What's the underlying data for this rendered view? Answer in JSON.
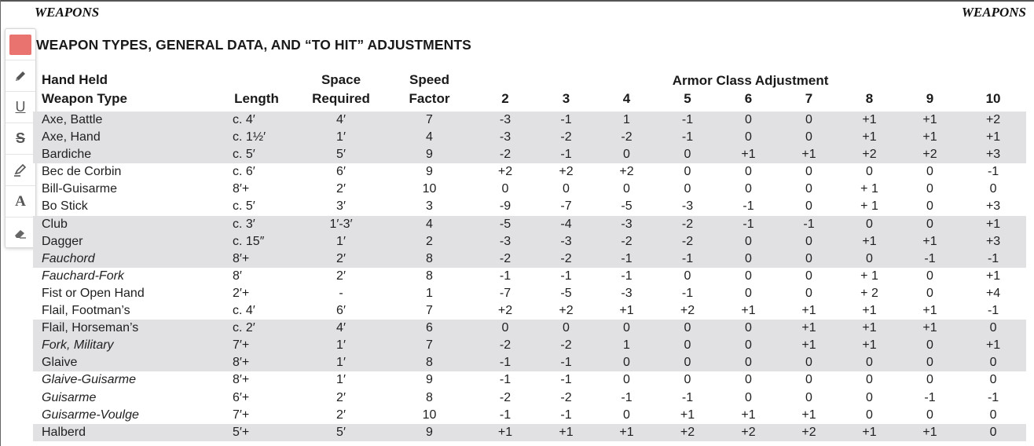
{
  "running_header": {
    "left": "WEAPONS",
    "right": "WEAPONS"
  },
  "section_title": "WEAPON TYPES, GENERAL DATA, AND “TO HIT” ADJUSTMENTS",
  "toolbar": {
    "highlight_color": "#e8736f",
    "tools": [
      "color-swatch",
      "pen-icon",
      "underline-icon",
      "strikethrough-icon",
      "highlighter-icon",
      "text-icon",
      "eraser-icon"
    ],
    "underline_glyph": "U",
    "strike_glyph": "S",
    "text_glyph": "A"
  },
  "table": {
    "headers": {
      "weapon_line1": "Hand Held",
      "weapon_line2": "Weapon Type",
      "length": "Length",
      "space_line1": "Space",
      "space_line2": "Required",
      "speed_line1": "Speed",
      "speed_line2": "Factor",
      "ac_group": "Armor Class Adjustment",
      "ac": [
        "2",
        "3",
        "4",
        "5",
        "6",
        "7",
        "8",
        "9",
        "10"
      ]
    },
    "rows": [
      {
        "name": "Axe, Battle",
        "italic": false,
        "length": "c. 4′",
        "space": "4′",
        "speed": "7",
        "ac": [
          "-3",
          "-1",
          "1",
          "-1",
          "0",
          "0",
          "+1",
          "+1",
          "+2"
        ]
      },
      {
        "name": "Axe, Hand",
        "italic": false,
        "length": "c. 1½′",
        "space": "1′",
        "speed": "4",
        "ac": [
          "-3",
          "-2",
          "-2",
          "-1",
          "0",
          "0",
          "+1",
          "+1",
          "+1"
        ]
      },
      {
        "name": "Bardiche",
        "italic": false,
        "length": "c. 5′",
        "space": "5′",
        "speed": "9",
        "ac": [
          "-2",
          "-1",
          "0",
          "0",
          "+1",
          "+1",
          "+2",
          "+2",
          "+3"
        ]
      },
      {
        "name": "Bec de Corbin",
        "italic": false,
        "length": "c. 6′",
        "space": "6′",
        "speed": "9",
        "ac": [
          "+2",
          "+2",
          "+2",
          "0",
          "0",
          "0",
          "0",
          "0",
          "-1"
        ]
      },
      {
        "name": "Bill-Guisarme",
        "italic": false,
        "length": "8′+",
        "space": "2′",
        "speed": "10",
        "ac": [
          "0",
          "0",
          "0",
          "0",
          "0",
          "0",
          "+ 1",
          "0",
          "0"
        ]
      },
      {
        "name": "Bo Stick",
        "italic": false,
        "length": "c. 5′",
        "space": "3′",
        "speed": "3",
        "ac": [
          "-9",
          "-7",
          "-5",
          "-3",
          "-1",
          "0",
          "+ 1",
          "0",
          "+3"
        ]
      },
      {
        "name": "Club",
        "italic": false,
        "length": "c. 3′",
        "space": "1′-3′",
        "speed": "4",
        "ac": [
          "-5",
          "-4",
          "-3",
          "-2",
          "-1",
          "-1",
          "0",
          "0",
          "+1"
        ]
      },
      {
        "name": "Dagger",
        "italic": false,
        "length": "c. 15″",
        "space": "1′",
        "speed": "2",
        "ac": [
          "-3",
          "-3",
          "-2",
          "-2",
          "0",
          "0",
          "+1",
          "+1",
          "+3"
        ]
      },
      {
        "name": "Fauchord",
        "italic": true,
        "length": "8′+",
        "space": "2′",
        "speed": "8",
        "ac": [
          "-2",
          "-2",
          "-1",
          "-1",
          "0",
          "0",
          "0",
          "-1",
          "-1"
        ]
      },
      {
        "name": "Fauchard-Fork",
        "italic": true,
        "length": "8′",
        "space": "2′",
        "speed": "8",
        "ac": [
          "-1",
          "-1",
          "-1",
          "0",
          "0",
          "0",
          "+ 1",
          "0",
          "+1"
        ]
      },
      {
        "name": "Fist or Open Hand",
        "italic": false,
        "length": "2′+",
        "space": "-",
        "speed": "1",
        "ac": [
          "-7",
          "-5",
          "-3",
          "-1",
          "0",
          "0",
          "+ 2",
          "0",
          "+4"
        ]
      },
      {
        "name": "Flail, Footman’s",
        "italic": false,
        "length": "c. 4′",
        "space": "6′",
        "speed": "7",
        "ac": [
          "+2",
          "+2",
          "+1",
          "+2",
          "+1",
          "+1",
          "+1",
          "+1",
          "-1"
        ]
      },
      {
        "name": "Flail, Horseman’s",
        "italic": false,
        "length": "c. 2′",
        "space": "4′",
        "speed": "6",
        "ac": [
          "0",
          "0",
          "0",
          "0",
          "0",
          "+1",
          "+1",
          "+1",
          "0"
        ]
      },
      {
        "name": "Fork, Military",
        "italic": true,
        "length": "7′+",
        "space": "1′",
        "speed": "7",
        "ac": [
          "-2",
          "-2",
          "1",
          "0",
          "0",
          "+1",
          "+1",
          "0",
          "+1"
        ]
      },
      {
        "name": "Glaive",
        "italic": false,
        "length": "8′+",
        "space": "1′",
        "speed": "8",
        "ac": [
          "-1",
          "-1",
          "0",
          "0",
          "0",
          "0",
          "0",
          "0",
          "0"
        ]
      },
      {
        "name": "Glaive-Guisarme",
        "italic": true,
        "length": "8′+",
        "space": "1′",
        "speed": "9",
        "ac": [
          "-1",
          "-1",
          "0",
          "0",
          "0",
          "0",
          "0",
          "0",
          "0"
        ]
      },
      {
        "name": "Guisarme",
        "italic": true,
        "length": "6′+",
        "space": "2′",
        "speed": "8",
        "ac": [
          "-2",
          "-2",
          "-1",
          "-1",
          "0",
          "0",
          "0",
          "-1",
          "-1"
        ]
      },
      {
        "name": "Guisarme-Voulge",
        "italic": true,
        "length": "7′+",
        "space": "2′",
        "speed": "10",
        "ac": [
          "-1",
          "-1",
          "0",
          "+1",
          "+1",
          "+1",
          "0",
          "0",
          "0"
        ]
      },
      {
        "name": "Halberd",
        "italic": false,
        "length": "5′+",
        "space": "5′",
        "speed": "9",
        "ac": [
          "+1",
          "+1",
          "+1",
          "+2",
          "+2",
          "+2",
          "+1",
          "+1",
          "0"
        ]
      }
    ]
  }
}
